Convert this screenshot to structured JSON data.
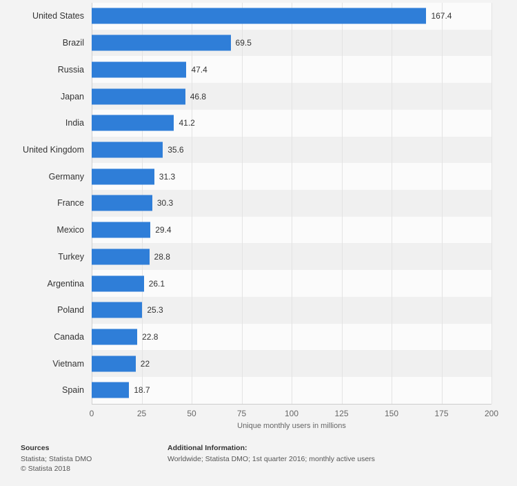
{
  "chart_data": {
    "type": "bar",
    "orientation": "horizontal",
    "categories": [
      "United States",
      "Brazil",
      "Russia",
      "Japan",
      "India",
      "United Kingdom",
      "Germany",
      "France",
      "Mexico",
      "Turkey",
      "Argentina",
      "Poland",
      "Canada",
      "Vietnam",
      "Spain"
    ],
    "values": [
      167.4,
      69.5,
      47.4,
      46.8,
      41.2,
      35.6,
      31.3,
      30.3,
      29.4,
      28.8,
      26.1,
      25.3,
      22.8,
      22,
      18.7
    ],
    "value_labels": [
      "167.4",
      "69.5",
      "47.4",
      "46.8",
      "41.2",
      "35.6",
      "31.3",
      "30.3",
      "29.4",
      "28.8",
      "26.1",
      "25.3",
      "22.8",
      "22",
      "18.7"
    ],
    "title": "",
    "xlabel": "Unique monthly users in millions",
    "ylabel": "",
    "xlim": [
      0,
      200
    ],
    "xticks": [
      0,
      25,
      50,
      75,
      100,
      125,
      150,
      175,
      200
    ],
    "grid": true,
    "legend": "none",
    "bar_color": "#2f7ed8",
    "background_color": "#f3f3f3",
    "band_color_even": "#fbfbfb",
    "band_color_odd": "#f0f0f0"
  },
  "footer": {
    "sources_title": "Sources",
    "sources_lines": [
      "Statista; Statista DMO",
      "© Statista 2018"
    ],
    "additional_title": "Additional Information:",
    "additional_lines": [
      "Worldwide; Statista DMO; 1st quarter 2016; monthly active users"
    ]
  }
}
